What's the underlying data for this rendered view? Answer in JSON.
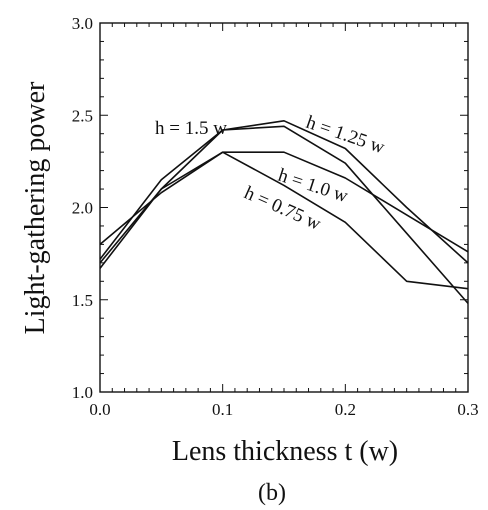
{
  "chart_data": {
    "type": "line",
    "xlabel": "Lens thickness t (w)",
    "ylabel": "Light-gathering power",
    "caption": "(b)",
    "xlim": [
      0.0,
      0.3
    ],
    "ylim": [
      1.0,
      3.0
    ],
    "x_ticks": [
      "0.0",
      "0.1",
      "0.2",
      "0.3"
    ],
    "y_ticks": [
      "1.0",
      "1.5",
      "2.0",
      "2.5",
      "3.0"
    ],
    "grid": false,
    "series": [
      {
        "name": "h = 1.5 w",
        "x": [
          0.0,
          0.05,
          0.1,
          0.15,
          0.2,
          0.25,
          0.3
        ],
        "y": [
          1.72,
          2.15,
          2.42,
          2.44,
          2.24,
          1.86,
          1.48
        ]
      },
      {
        "name": "h = 1.25 w",
        "x": [
          0.0,
          0.05,
          0.1,
          0.15,
          0.2,
          0.25,
          0.3
        ],
        "y": [
          1.7,
          2.1,
          2.42,
          2.47,
          2.32,
          2.0,
          1.7
        ]
      },
      {
        "name": "h = 1.0 w",
        "x": [
          0.0,
          0.05,
          0.1,
          0.15,
          0.2,
          0.25,
          0.3
        ],
        "y": [
          1.8,
          2.08,
          2.3,
          2.3,
          2.16,
          1.96,
          1.76
        ]
      },
      {
        "name": "h = 0.75 w",
        "x": [
          0.0,
          0.05,
          0.1,
          0.15,
          0.2,
          0.25,
          0.3
        ],
        "y": [
          1.67,
          2.1,
          2.3,
          2.12,
          1.92,
          1.6,
          1.56
        ]
      }
    ]
  }
}
